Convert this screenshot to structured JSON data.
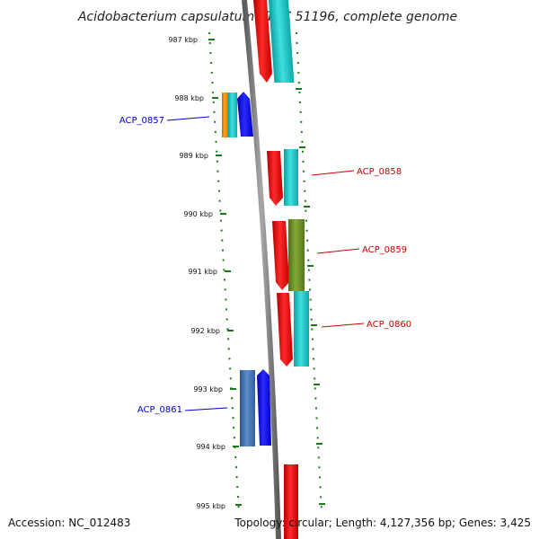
{
  "title": "Acidobacterium capsulatum ATCC 51196, complete genome",
  "footer": {
    "accession": "Accession: NC_012483",
    "topology": "Topology: circular; Length: 4,127,356 bp; Genes: 3,425"
  },
  "ticks": [
    "987 kbp",
    "988 kbp",
    "989 kbp",
    "990 kbp",
    "991 kbp",
    "992 kbp",
    "993 kbp",
    "994 kbp",
    "995 kbp"
  ],
  "gene_labels": [
    {
      "text": "ACP_0857",
      "side": "left",
      "color": "#0000cc"
    },
    {
      "text": "ACP_0858",
      "side": "right",
      "color": "#cc0000"
    },
    {
      "text": "ACP_0859",
      "side": "right",
      "color": "#cc0000"
    },
    {
      "text": "ACP_0860",
      "side": "right",
      "color": "#cc0000"
    },
    {
      "text": "ACP_0861",
      "side": "left",
      "color": "#0000cc"
    }
  ],
  "colors": {
    "backbone": "#808080",
    "tick": "#1a7a1a",
    "red": "#ff0000",
    "cyan": "#1ccccc",
    "olive": "#6b8e23",
    "blue": "#0000ff",
    "steelblue": "#3f6fb0",
    "orange": "#ff8c00"
  }
}
